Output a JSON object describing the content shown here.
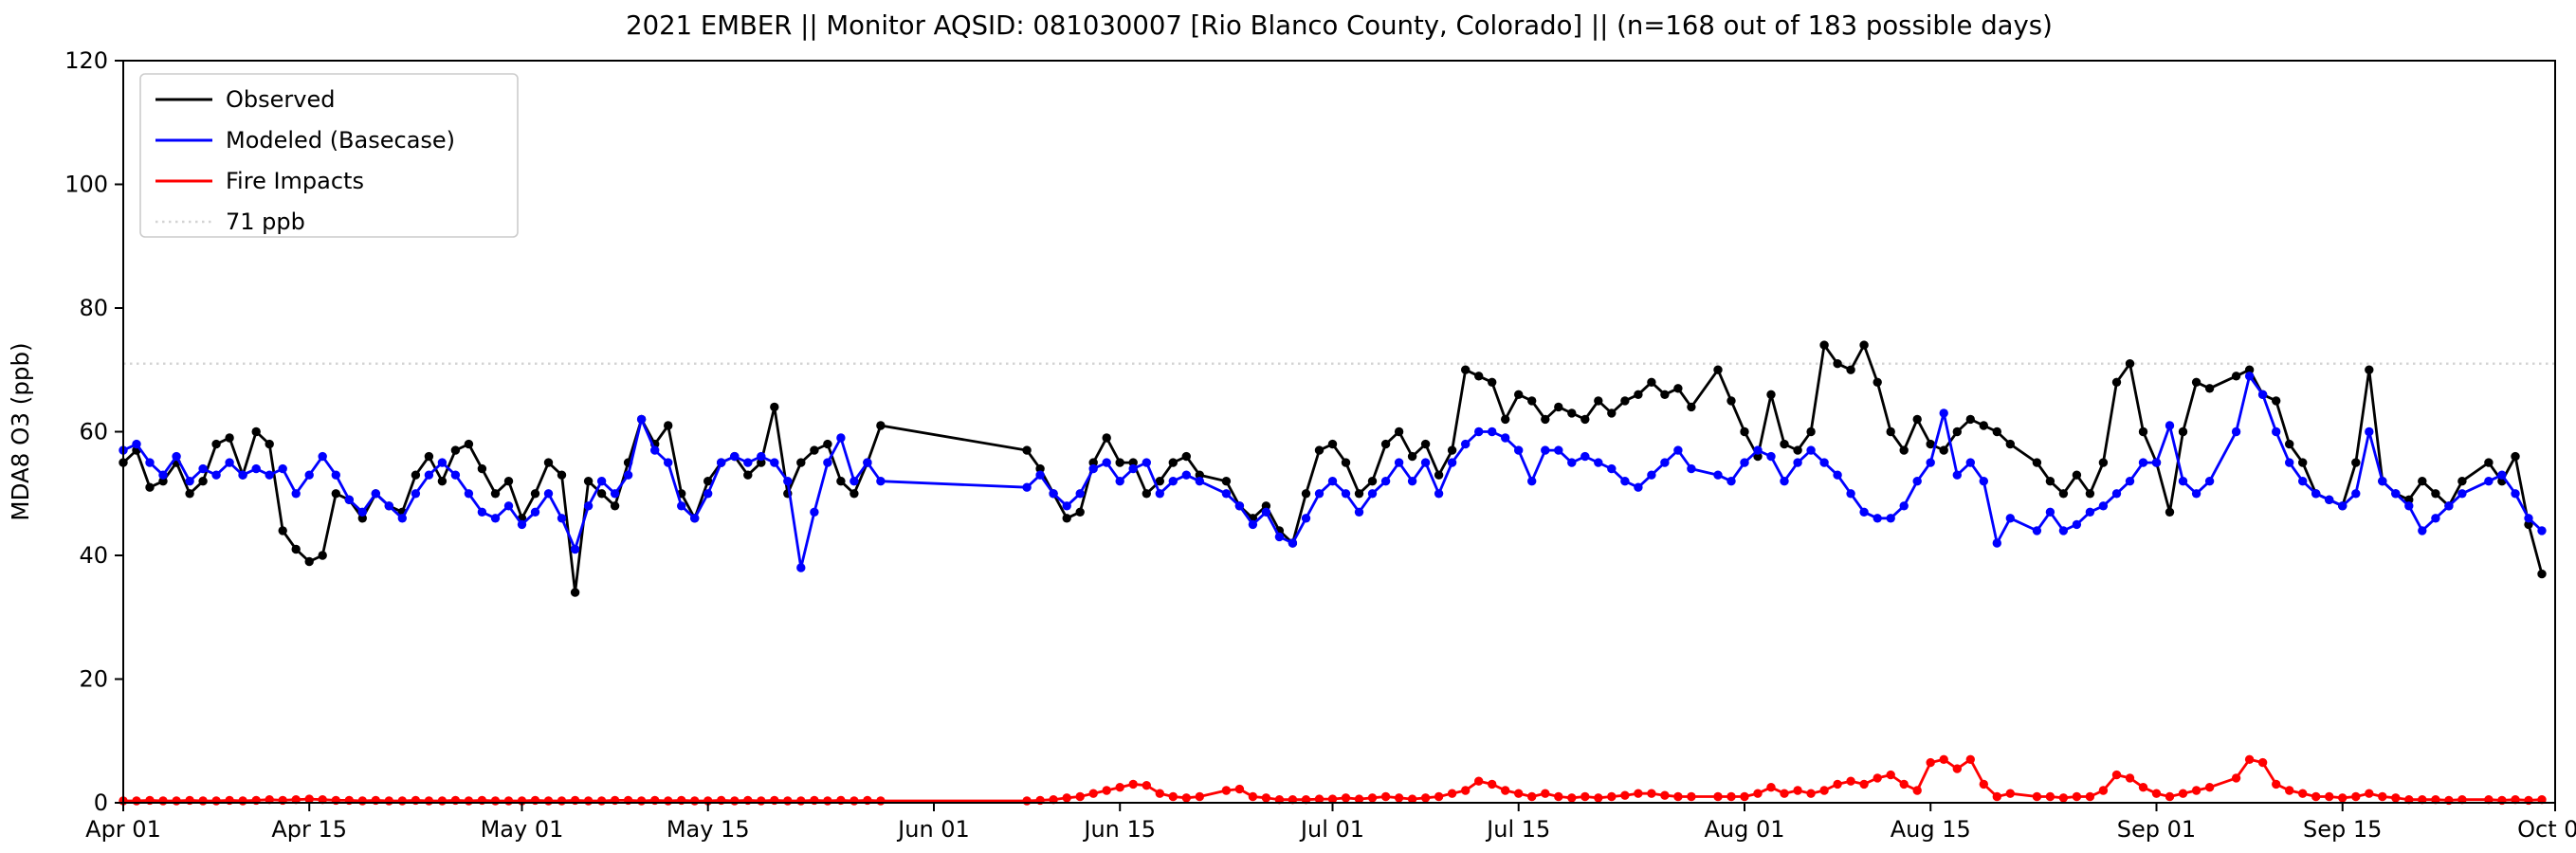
{
  "title": "2021 EMBER || Monitor AQSID: 081030007 [Rio Blanco County, Colorado] || (n=168 out of 183 possible days)",
  "chart_data": {
    "type": "line",
    "title": "2021 EMBER || Monitor AQSID: 081030007 [Rio Blanco County, Colorado] || (n=168 out of 183 possible days)",
    "xlabel": "",
    "ylabel": "MDA8 O3 (ppb)",
    "ylim": [
      0,
      120
    ],
    "x_range": [
      0,
      183
    ],
    "grid": false,
    "days_observed": 168,
    "days_possible": 183,
    "y_ticks": [
      0,
      20,
      40,
      60,
      80,
      100,
      120
    ],
    "x_ticks": [
      {
        "day": 0,
        "label": "Apr 01"
      },
      {
        "day": 14,
        "label": "Apr 15"
      },
      {
        "day": 30,
        "label": "May 01"
      },
      {
        "day": 44,
        "label": "May 15"
      },
      {
        "day": 61,
        "label": "Jun 01"
      },
      {
        "day": 75,
        "label": "Jun 15"
      },
      {
        "day": 91,
        "label": "Jul 01"
      },
      {
        "day": 105,
        "label": "Jul 15"
      },
      {
        "day": 122,
        "label": "Aug 01"
      },
      {
        "day": 136,
        "label": "Aug 15"
      },
      {
        "day": 153,
        "label": "Sep 01"
      },
      {
        "day": 167,
        "label": "Sep 15"
      },
      {
        "day": 183,
        "label": "Oct 01"
      }
    ],
    "reference_line": {
      "value": 71,
      "label": "71 ppb",
      "color": "#d3d3d3",
      "style": "dotted"
    },
    "legend": {
      "position": "upper left",
      "entries": [
        {
          "label": "Observed",
          "color": "#000000",
          "style": "solid"
        },
        {
          "label": "Modeled (Basecase)",
          "color": "#0000ff",
          "style": "solid"
        },
        {
          "label": "Fire Impacts",
          "color": "#ff0000",
          "style": "solid"
        },
        {
          "label": "71 ppb",
          "color": "#d3d3d3",
          "style": "dotted"
        }
      ]
    },
    "series": [
      {
        "id": "observed",
        "name": "Observed",
        "color": "#000000",
        "marker": "circle",
        "values": [
          55,
          57,
          51,
          52,
          55,
          50,
          52,
          58,
          59,
          53,
          60,
          58,
          44,
          41,
          39,
          40,
          50,
          49,
          46,
          50,
          48,
          47,
          53,
          56,
          52,
          57,
          58,
          54,
          50,
          52,
          46,
          50,
          55,
          53,
          34,
          52,
          50,
          48,
          55,
          62,
          58,
          61,
          50,
          46,
          52,
          55,
          56,
          53,
          55,
          64,
          50,
          55,
          57,
          58,
          52,
          50,
          55,
          61,
          null,
          null,
          null,
          null,
          null,
          null,
          null,
          null,
          null,
          null,
          57,
          54,
          50,
          46,
          47,
          55,
          59,
          55,
          55,
          50,
          52,
          55,
          56,
          53,
          null,
          52,
          48,
          46,
          48,
          44,
          42,
          50,
          57,
          58,
          55,
          50,
          52,
          58,
          60,
          56,
          58,
          53,
          57,
          70,
          69,
          68,
          62,
          66,
          65,
          62,
          64,
          63,
          62,
          65,
          63,
          65,
          66,
          68,
          66,
          67,
          64,
          null,
          70,
          65,
          60,
          56,
          66,
          58,
          57,
          60,
          74,
          71,
          70,
          74,
          68,
          60,
          57,
          62,
          58,
          57,
          60,
          62,
          61,
          60,
          58,
          null,
          55,
          52,
          50,
          53,
          50,
          55,
          68,
          71,
          60,
          55,
          47,
          60,
          68,
          67,
          null,
          69,
          70,
          66,
          65,
          58,
          55,
          50,
          49,
          48,
          55,
          70,
          52,
          50,
          49,
          52,
          50,
          48,
          52,
          null,
          55,
          52,
          56,
          45,
          37
        ]
      },
      {
        "id": "modeled",
        "name": "Modeled (Basecase)",
        "color": "#0000ff",
        "marker": "circle",
        "values": [
          57,
          58,
          55,
          53,
          56,
          52,
          54,
          53,
          55,
          53,
          54,
          53,
          54,
          50,
          53,
          56,
          53,
          49,
          47,
          50,
          48,
          46,
          50,
          53,
          55,
          53,
          50,
          47,
          46,
          48,
          45,
          47,
          50,
          46,
          41,
          48,
          52,
          50,
          53,
          62,
          57,
          55,
          48,
          46,
          50,
          55,
          56,
          55,
          56,
          55,
          52,
          38,
          47,
          55,
          59,
          52,
          55,
          52,
          null,
          null,
          null,
          null,
          null,
          null,
          null,
          null,
          null,
          null,
          51,
          53,
          50,
          48,
          50,
          54,
          55,
          52,
          54,
          55,
          50,
          52,
          53,
          52,
          null,
          50,
          48,
          45,
          47,
          43,
          42,
          46,
          50,
          52,
          50,
          47,
          50,
          52,
          55,
          52,
          55,
          50,
          55,
          58,
          60,
          60,
          59,
          57,
          52,
          57,
          57,
          55,
          56,
          55,
          54,
          52,
          51,
          53,
          55,
          57,
          54,
          null,
          53,
          52,
          55,
          57,
          56,
          52,
          55,
          57,
          55,
          53,
          50,
          47,
          46,
          46,
          48,
          52,
          55,
          63,
          53,
          55,
          52,
          42,
          46,
          null,
          44,
          47,
          44,
          45,
          47,
          48,
          50,
          52,
          55,
          55,
          61,
          52,
          50,
          52,
          null,
          60,
          69,
          66,
          60,
          55,
          52,
          50,
          49,
          48,
          50,
          60,
          52,
          50,
          48,
          44,
          46,
          48,
          50,
          null,
          52,
          53,
          50,
          46,
          44
        ]
      },
      {
        "id": "fire",
        "name": "Fire Impacts",
        "color": "#ff0000",
        "marker": "circle",
        "values": [
          0.3,
          0.3,
          0.4,
          0.3,
          0.3,
          0.4,
          0.3,
          0.3,
          0.4,
          0.3,
          0.4,
          0.5,
          0.4,
          0.5,
          0.6,
          0.5,
          0.4,
          0.4,
          0.3,
          0.4,
          0.3,
          0.3,
          0.4,
          0.3,
          0.3,
          0.4,
          0.3,
          0.4,
          0.3,
          0.3,
          0.3,
          0.4,
          0.3,
          0.3,
          0.4,
          0.3,
          0.3,
          0.4,
          0.4,
          0.3,
          0.4,
          0.3,
          0.4,
          0.3,
          0.3,
          0.4,
          0.3,
          0.4,
          0.3,
          0.4,
          0.3,
          0.3,
          0.4,
          0.3,
          0.4,
          0.3,
          0.4,
          0.3,
          null,
          null,
          null,
          null,
          null,
          null,
          null,
          null,
          null,
          null,
          0.3,
          0.4,
          0.5,
          0.8,
          1,
          1.5,
          2,
          2.5,
          3,
          2.8,
          1.5,
          1,
          0.8,
          1,
          null,
          2,
          2.2,
          1,
          0.8,
          0.5,
          0.5,
          0.5,
          0.6,
          0.6,
          0.8,
          0.6,
          0.8,
          1,
          0.8,
          0.6,
          0.8,
          1,
          1.5,
          2,
          3.5,
          3,
          2,
          1.5,
          1,
          1.5,
          1,
          0.8,
          1,
          0.8,
          1,
          1.2,
          1.5,
          1.5,
          1.2,
          1,
          1,
          null,
          1,
          1,
          1,
          1.5,
          2.5,
          1.5,
          2,
          1.5,
          2,
          3,
          3.5,
          3,
          4,
          4.5,
          3,
          2,
          6.5,
          7,
          5.5,
          7,
          3,
          1,
          1.5,
          null,
          1,
          1,
          0.8,
          1,
          1,
          2,
          4.5,
          4,
          2.5,
          1.5,
          1,
          1.5,
          2,
          2.5,
          null,
          4,
          7,
          6.5,
          3,
          2,
          1.5,
          1,
          1,
          0.8,
          1,
          1.5,
          1,
          0.8,
          0.5,
          0.5,
          0.5,
          0.4,
          0.5,
          null,
          0.5,
          0.4,
          0.5,
          0.4,
          0.5
        ]
      }
    ]
  }
}
